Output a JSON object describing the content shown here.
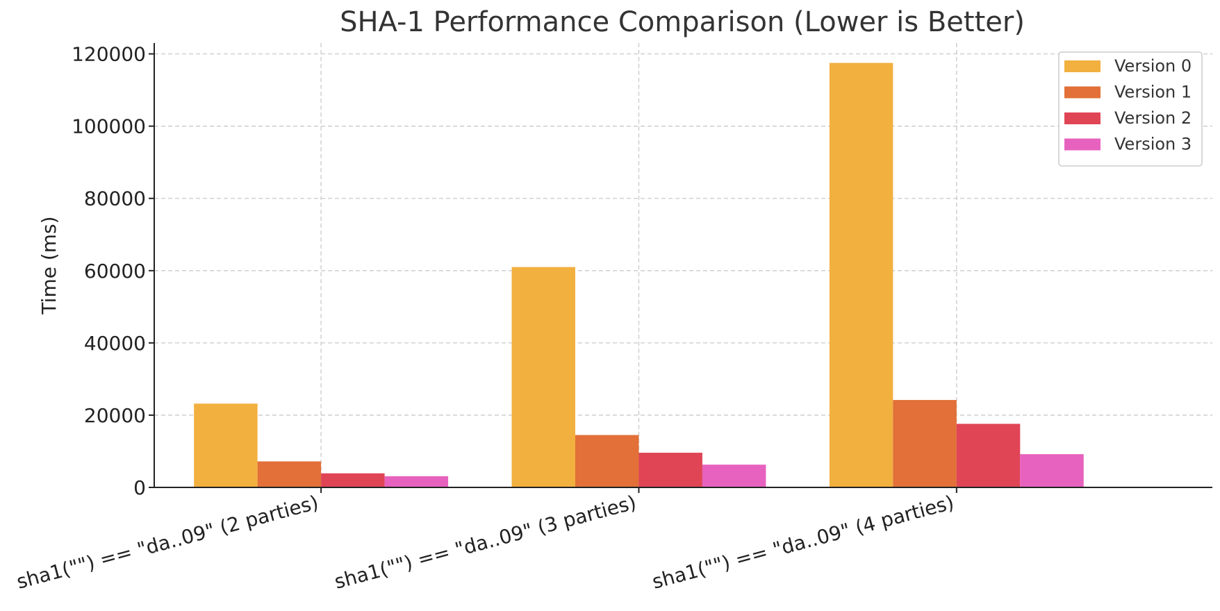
{
  "chart_data": {
    "type": "bar",
    "title": "SHA-1 Performance Comparison (Lower is Better)",
    "xlabel": "",
    "ylabel": "Time (ms)",
    "ylim": [
      0,
      123000
    ],
    "yticks": [
      0,
      20000,
      40000,
      60000,
      80000,
      100000,
      120000
    ],
    "categories": [
      "sha1(\"\") == \"da..09\" (2 parties)",
      "sha1(\"\") == \"da..09\" (3 parties)",
      "sha1(\"\") == \"da..09\" (4 parties)"
    ],
    "series": [
      {
        "name": "Version 0",
        "color": "#F2B03F",
        "values": [
          23200,
          61000,
          117500
        ]
      },
      {
        "name": "Version 1",
        "color": "#E27038",
        "values": [
          7200,
          14500,
          24200
        ]
      },
      {
        "name": "Version 2",
        "color": "#E04556",
        "values": [
          3900,
          9600,
          17600
        ]
      },
      {
        "name": "Version 3",
        "color": "#E762BE",
        "values": [
          3100,
          6300,
          9200
        ]
      }
    ],
    "grid": true,
    "legend_position": "top-right"
  }
}
